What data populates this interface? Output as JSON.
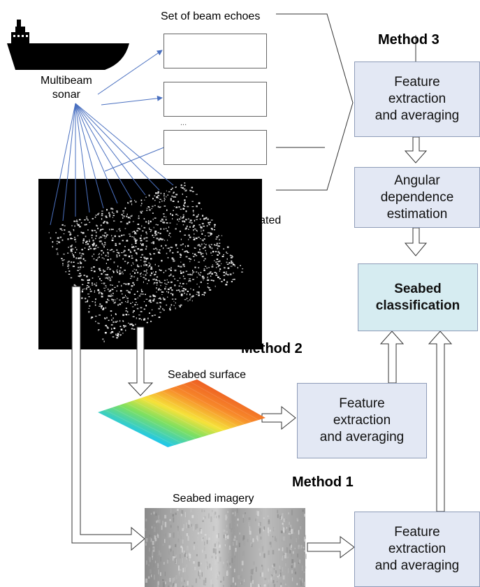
{
  "labels": {
    "set_of_beam_echoes": "Set of beam echoes",
    "multibeam_sonar": "Multibeam\nsonar",
    "investigated_seafloor": "Investigated\nseafloor",
    "seabed_surface": "Seabed surface",
    "seabed_imagery": "Seabed imagery",
    "ellipsis": "..."
  },
  "methods": {
    "method3": "Method 3",
    "method2": "Method 2",
    "method1": "Method 1"
  },
  "boxes": {
    "m3_feature": "Feature\nextraction\nand averaging",
    "angular": "Angular\ndependence\nestimation",
    "classification": "Seabed\nclassification",
    "m2_feature": "Feature\nextraction\nand averaging",
    "m1_feature": "Feature\nextraction\nand averaging"
  },
  "colors": {
    "box_fill": "#e3e8f4",
    "classification_fill": "#d6ecf1",
    "echo_line": "#3a4fd6",
    "beam_line": "#4a70c0"
  }
}
